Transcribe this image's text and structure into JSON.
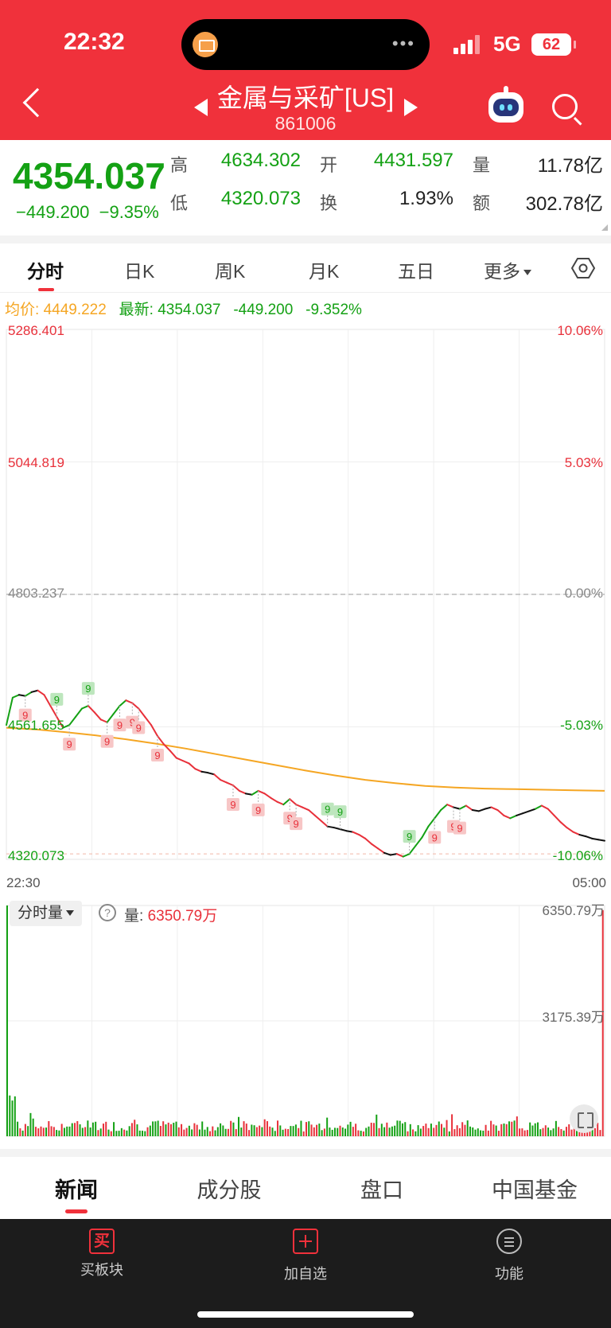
{
  "status_bar": {
    "time": "22:32",
    "network": "5G",
    "battery": "62"
  },
  "header": {
    "title": "金属与采矿[US]",
    "code": "861006"
  },
  "quote": {
    "price": "4354.037",
    "change": "−449.200",
    "change_pct": "−9.35%",
    "stats": [
      {
        "label": "高",
        "value": "4634.302"
      },
      {
        "label": "开",
        "value": "4431.597"
      },
      {
        "label": "量",
        "value": "11.78亿"
      },
      {
        "label": "低",
        "value": "4320.073"
      },
      {
        "label": "换",
        "value": "1.93%"
      },
      {
        "label": "额",
        "value": "302.78亿"
      }
    ]
  },
  "tabs": [
    "分时",
    "日K",
    "周K",
    "月K",
    "五日",
    "更多"
  ],
  "info": {
    "avg_label": "均价:",
    "avg_value": "4449.222",
    "latest_label": "最新:",
    "latest_value": "4354.037",
    "latest_change": "-449.200",
    "latest_pct": "-9.352%"
  },
  "chart_data": {
    "type": "line",
    "y_ticks_left": [
      "5286.401",
      "5044.819",
      "4803.237",
      "4561.655",
      "4320.073"
    ],
    "y_ticks_right": [
      "10.06%",
      "5.03%",
      "0.00%",
      "-5.03%",
      "-10.06%"
    ],
    "x_ticks": [
      "22:30",
      "05:00"
    ],
    "ylim": [
      4320.073,
      5286.401
    ],
    "prev_close": 4803.237,
    "marker_label": "9",
    "price_series": [
      4565,
      4615,
      4620,
      4618,
      4625,
      4628,
      4620,
      4600,
      4580,
      4560,
      4565,
      4580,
      4595,
      4600,
      4588,
      4575,
      4570,
      4585,
      4600,
      4610,
      4605,
      4595,
      4580,
      4565,
      4545,
      4530,
      4518,
      4505,
      4500,
      4495,
      4485,
      4480,
      4478,
      4475,
      4465,
      4460,
      4455,
      4445,
      4440,
      4438,
      4445,
      4440,
      4432,
      4425,
      4420,
      4430,
      4420,
      4415,
      4410,
      4400,
      4390,
      4380,
      4378,
      4375,
      4372,
      4370,
      4365,
      4358,
      4348,
      4340,
      4332,
      4328,
      4330,
      4325,
      4330,
      4345,
      4360,
      4380,
      4395,
      4410,
      4420,
      4415,
      4412,
      4418,
      4410,
      4408,
      4412,
      4415,
      4410,
      4400,
      4395,
      4400,
      4404,
      4408,
      4412,
      4418,
      4412,
      4400,
      4388,
      4378,
      4370,
      4365,
      4362,
      4358,
      4356,
      4354
    ],
    "avg_series": [
      4560,
      4557,
      4552,
      4546,
      4539,
      4531,
      4522,
      4512,
      4502,
      4492,
      4482,
      4473,
      4465,
      4459,
      4454,
      4451,
      4449,
      4448,
      4447,
      4446,
      4445
    ],
    "markers": [
      {
        "i": 3,
        "pos": "below"
      },
      {
        "i": 8,
        "pos": "above"
      },
      {
        "i": 10,
        "pos": "below"
      },
      {
        "i": 13,
        "pos": "above"
      },
      {
        "i": 16,
        "pos": "below"
      },
      {
        "i": 18,
        "pos": "below"
      },
      {
        "i": 20,
        "pos": "below"
      },
      {
        "i": 21,
        "pos": "below"
      },
      {
        "i": 24,
        "pos": "below"
      },
      {
        "i": 36,
        "pos": "below"
      },
      {
        "i": 40,
        "pos": "below"
      },
      {
        "i": 45,
        "pos": "below"
      },
      {
        "i": 46,
        "pos": "below"
      },
      {
        "i": 51,
        "pos": "above"
      },
      {
        "i": 53,
        "pos": "above"
      },
      {
        "i": 64,
        "pos": "above"
      },
      {
        "i": 68,
        "pos": "below"
      },
      {
        "i": 71,
        "pos": "below"
      },
      {
        "i": 72,
        "pos": "below"
      }
    ]
  },
  "volume": {
    "selector": "分时量",
    "help": "?",
    "label": "量:",
    "value": "6350.79万",
    "max_label": "6350.79万",
    "mid_label": "3175.39万"
  },
  "bottom_tabs": [
    "新闻",
    "成分股",
    "盘口",
    "中国基金"
  ],
  "bottom_bar": [
    {
      "icon": "buy-icon",
      "glyph": "买",
      "label": "买板块"
    },
    {
      "icon": "add-icon",
      "label": "加自选"
    },
    {
      "icon": "menu-icon",
      "label": "功能"
    }
  ],
  "colors": {
    "header_red": "#f0313b",
    "up": "#e8303a",
    "down": "#14a114",
    "avg": "#f5a623"
  }
}
